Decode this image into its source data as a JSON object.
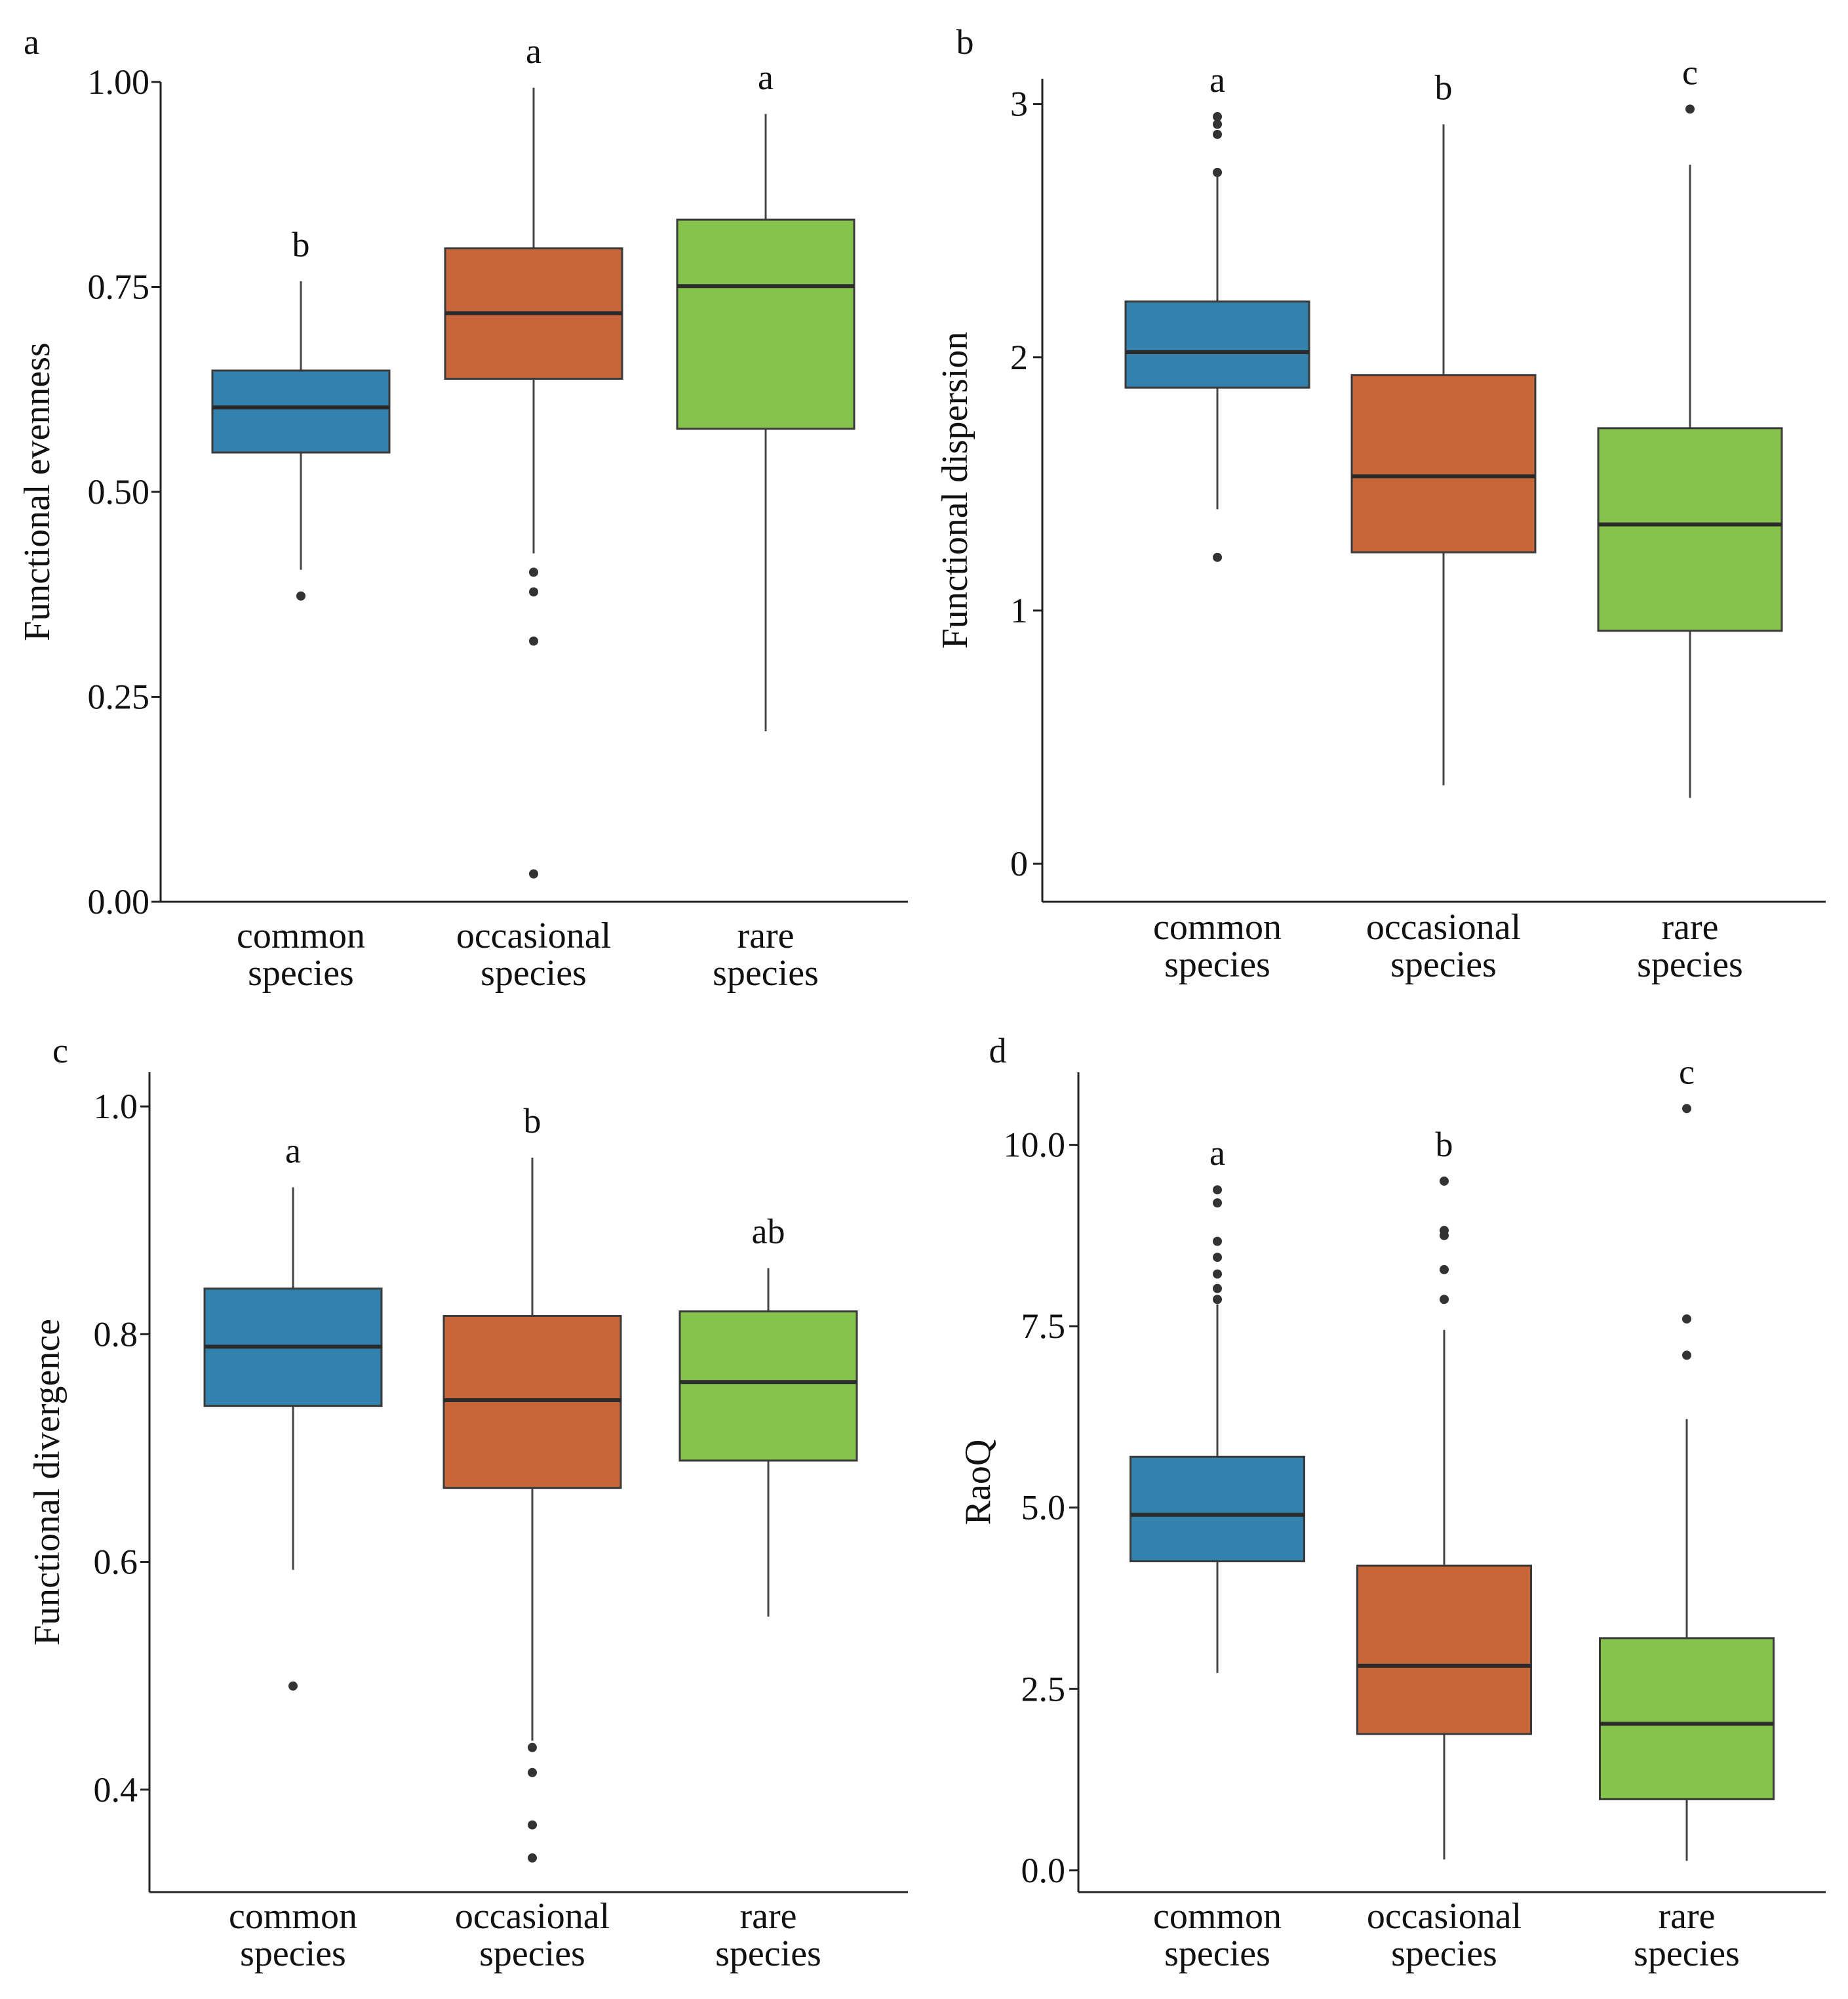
{
  "chart_data": [
    {
      "panel": "a",
      "type": "box",
      "ylabel": "Functional evenness",
      "ylim": [
        0.0,
        1.0
      ],
      "yticks": [
        0.0,
        0.25,
        0.5,
        0.75,
        1.0
      ],
      "ytick_labels": [
        "0.00",
        "0.25",
        "0.50",
        "0.75",
        "1.00"
      ],
      "categories": [
        [
          "common",
          "species"
        ],
        [
          "occasional",
          "species"
        ],
        [
          "rare",
          "species"
        ]
      ],
      "colors": [
        "#3381ad",
        "#c8663a",
        "#86c34c"
      ],
      "boxes": [
        {
          "q1": 0.548,
          "median": 0.603,
          "q3": 0.648,
          "whisker_low": 0.405,
          "whisker_high": 0.757,
          "outliers": [
            0.373
          ],
          "letter": "b"
        },
        {
          "q1": 0.638,
          "median": 0.718,
          "q3": 0.797,
          "whisker_low": 0.425,
          "whisker_high": 0.993,
          "outliers": [
            0.402,
            0.378,
            0.318,
            0.034
          ],
          "letter": "a"
        },
        {
          "q1": 0.577,
          "median": 0.751,
          "q3": 0.832,
          "whisker_low": 0.208,
          "whisker_high": 0.961,
          "outliers": [],
          "letter": "a"
        }
      ]
    },
    {
      "panel": "b",
      "type": "box",
      "ylabel": "Functional dispersion",
      "ylim": [
        -0.15,
        3.1
      ],
      "yticks": [
        0,
        1,
        2,
        3
      ],
      "ytick_labels": [
        "0",
        "1",
        "2",
        "3"
      ],
      "categories": [
        [
          "common",
          "species"
        ],
        [
          "occasional",
          "species"
        ],
        [
          "rare",
          "species"
        ]
      ],
      "colors": [
        "#3381ad",
        "#c8663a",
        "#86c34c"
      ],
      "boxes": [
        {
          "q1": 1.88,
          "median": 2.02,
          "q3": 2.22,
          "whisker_low": 1.4,
          "whisker_high": 2.72,
          "outliers": [
            2.95,
            2.92,
            2.88,
            2.73,
            1.21
          ],
          "letter": "a"
        },
        {
          "q1": 1.23,
          "median": 1.53,
          "q3": 1.93,
          "whisker_low": 0.31,
          "whisker_high": 2.92,
          "outliers": [],
          "letter": "b"
        },
        {
          "q1": 0.92,
          "median": 1.34,
          "q3": 1.72,
          "whisker_low": 0.26,
          "whisker_high": 2.76,
          "outliers": [
            2.98
          ],
          "letter": "c"
        }
      ]
    },
    {
      "panel": "c",
      "type": "box",
      "ylabel": "Functional divergence",
      "ylim": [
        0.31,
        1.03
      ],
      "yticks": [
        0.4,
        0.6,
        0.8,
        1.0
      ],
      "ytick_labels": [
        "0.4",
        "0.6",
        "0.8",
        "1.0"
      ],
      "categories": [
        [
          "common",
          "species"
        ],
        [
          "occasional",
          "species"
        ],
        [
          "rare",
          "species"
        ]
      ],
      "colors": [
        "#3381ad",
        "#c8663a",
        "#86c34c"
      ],
      "boxes": [
        {
          "q1": 0.737,
          "median": 0.789,
          "q3": 0.84,
          "whisker_low": 0.593,
          "whisker_high": 0.929,
          "outliers": [
            0.491
          ],
          "letter": "a"
        },
        {
          "q1": 0.665,
          "median": 0.742,
          "q3": 0.816,
          "whisker_low": 0.443,
          "whisker_high": 0.955,
          "outliers": [
            0.437,
            0.415,
            0.369,
            0.34
          ],
          "letter": "b"
        },
        {
          "q1": 0.689,
          "median": 0.758,
          "q3": 0.82,
          "whisker_low": 0.552,
          "whisker_high": 0.858,
          "outliers": [],
          "letter": "ab"
        }
      ]
    },
    {
      "panel": "d",
      "type": "box",
      "ylabel": "RaoQ",
      "ylim": [
        -0.3,
        11.0
      ],
      "yticks": [
        0.0,
        2.5,
        5.0,
        7.5,
        10.0
      ],
      "ytick_labels": [
        "0.0",
        "2.5",
        "5.0",
        "7.5",
        "10.0"
      ],
      "categories": [
        [
          "common",
          "species"
        ],
        [
          "occasional",
          "species"
        ],
        [
          "rare",
          "species"
        ]
      ],
      "colors": [
        "#3381ad",
        "#c8663a",
        "#86c34c"
      ],
      "boxes": [
        {
          "q1": 4.26,
          "median": 4.9,
          "q3": 5.7,
          "whisker_low": 2.72,
          "whisker_high": 7.8,
          "outliers": [
            9.38,
            9.2,
            8.67,
            8.45,
            8.22,
            8.02,
            7.87
          ],
          "letter": "a"
        },
        {
          "q1": 1.88,
          "median": 2.82,
          "q3": 4.2,
          "whisker_low": 0.15,
          "whisker_high": 7.45,
          "outliers": [
            9.5,
            8.82,
            8.75,
            8.28,
            7.87
          ],
          "letter": "b"
        },
        {
          "q1": 0.98,
          "median": 2.02,
          "q3": 3.2,
          "whisker_low": 0.13,
          "whisker_high": 6.22,
          "outliers": [
            10.5,
            7.6,
            7.1
          ],
          "letter": "c"
        }
      ]
    }
  ]
}
